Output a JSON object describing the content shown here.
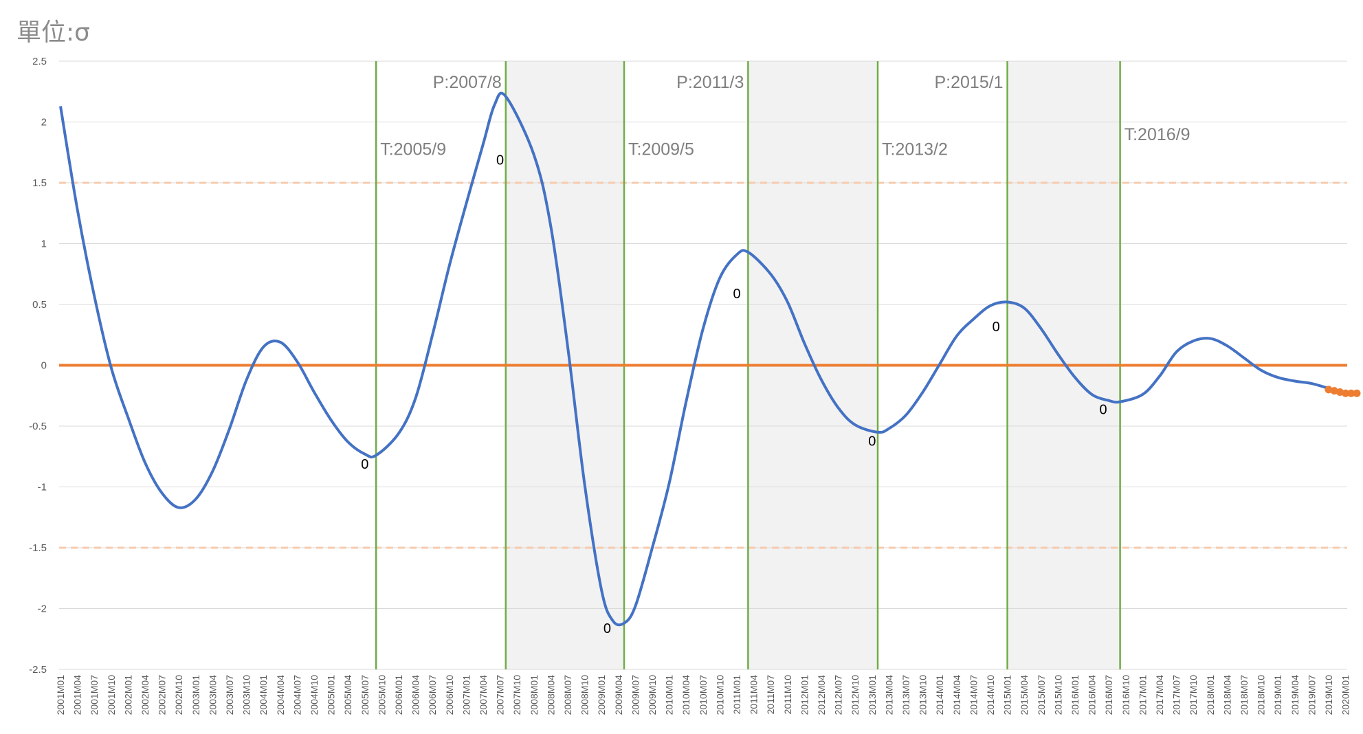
{
  "unit_label": "單位:σ",
  "colors": {
    "series": "#4472c4",
    "baseline": "#ed7d31",
    "forecast": "#ed7d31",
    "threshold": "#f8cbad",
    "turning_line": "#70ad47",
    "shade": "#f2f2f2",
    "grid": "#d9d9d9"
  },
  "chart_data": {
    "type": "line",
    "ylim": [
      -2.5,
      2.5
    ],
    "yticks": [
      "2.5",
      "2",
      "1.5",
      "1",
      "0.5",
      "0",
      "-0.5",
      "-1",
      "-1.5",
      "-2",
      "-2.5"
    ],
    "xticks": [
      "2001M01",
      "2001M04",
      "2001M07",
      "2001M10",
      "2002M01",
      "2002M04",
      "2002M07",
      "2002M10",
      "2003M01",
      "2003M04",
      "2003M07",
      "2003M10",
      "2004M01",
      "2004M04",
      "2004M07",
      "2004M10",
      "2005M01",
      "2005M04",
      "2005M07",
      "2005M10",
      "2006M01",
      "2006M04",
      "2006M07",
      "2006M10",
      "2007M01",
      "2007M04",
      "2007M07",
      "2007M10",
      "2008M01",
      "2008M04",
      "2008M07",
      "2008M10",
      "2009M01",
      "2009M04",
      "2009M07",
      "2009M10",
      "2010M01",
      "2010M04",
      "2010M07",
      "2010M10",
      "2011M01",
      "2011M04",
      "2011M07",
      "2011M10",
      "2012M01",
      "2012M04",
      "2012M07",
      "2012M10",
      "2013M01",
      "2013M04",
      "2013M07",
      "2013M10",
      "2014M01",
      "2014M04",
      "2014M07",
      "2014M10",
      "2015M01",
      "2015M04",
      "2015M07",
      "2015M10",
      "2016M01",
      "2016M04",
      "2016M07",
      "2016M10",
      "2017M01",
      "2017M04",
      "2017M07",
      "2017M10",
      "2018M01",
      "2018M04",
      "2018M07",
      "2018M10",
      "2019M01",
      "2019M04",
      "2019M07",
      "2019M10",
      "2020M01"
    ],
    "series": [
      {
        "role": "cycle",
        "points": [
          [
            "2001M01",
            2.13
          ],
          [
            "2001M04",
            1.28
          ],
          [
            "2001M07",
            0.57
          ],
          [
            "2001M10",
            -0.02
          ],
          [
            "2002M01",
            -0.43
          ],
          [
            "2002M04",
            -0.8
          ],
          [
            "2002M07",
            -1.05
          ],
          [
            "2002M10",
            -1.17
          ],
          [
            "2003M01",
            -1.1
          ],
          [
            "2003M04",
            -0.87
          ],
          [
            "2003M07",
            -0.52
          ],
          [
            "2003M10",
            -0.12
          ],
          [
            "2004M01",
            0.15
          ],
          [
            "2004M04",
            0.19
          ],
          [
            "2004M07",
            0.03
          ],
          [
            "2004M10",
            -0.22
          ],
          [
            "2005M01",
            -0.45
          ],
          [
            "2005M04",
            -0.63
          ],
          [
            "2005M07",
            -0.73
          ],
          [
            "2005M09",
            -0.74
          ],
          [
            "2006M01",
            -0.56
          ],
          [
            "2006M04",
            -0.27
          ],
          [
            "2006M07",
            0.25
          ],
          [
            "2006M10",
            0.82
          ],
          [
            "2007M01",
            1.33
          ],
          [
            "2007M04",
            1.82
          ],
          [
            "2007M06",
            2.14
          ],
          [
            "2007M08",
            2.21
          ],
          [
            "2008M01",
            1.73
          ],
          [
            "2008M04",
            1.14
          ],
          [
            "2008M07",
            0.15
          ],
          [
            "2008M10",
            -0.98
          ],
          [
            "2009M01",
            -1.85
          ],
          [
            "2009M03",
            -2.1
          ],
          [
            "2009M05",
            -2.12
          ],
          [
            "2009M07",
            -1.98
          ],
          [
            "2009M10",
            -1.5
          ],
          [
            "2010M01",
            -0.97
          ],
          [
            "2010M04",
            -0.3
          ],
          [
            "2010M07",
            0.3
          ],
          [
            "2010M10",
            0.72
          ],
          [
            "2011M01",
            0.91
          ],
          [
            "2011M03",
            0.93
          ],
          [
            "2011M07",
            0.75
          ],
          [
            "2011M10",
            0.52
          ],
          [
            "2012M01",
            0.18
          ],
          [
            "2012M04",
            -0.12
          ],
          [
            "2012M07",
            -0.35
          ],
          [
            "2012M10",
            -0.49
          ],
          [
            "2013M02",
            -0.55
          ],
          [
            "2013M04",
            -0.52
          ],
          [
            "2013M07",
            -0.41
          ],
          [
            "2013M10",
            -0.22
          ],
          [
            "2014M01",
            0.01
          ],
          [
            "2014M04",
            0.24
          ],
          [
            "2014M07",
            0.38
          ],
          [
            "2014M10",
            0.49
          ],
          [
            "2015M01",
            0.52
          ],
          [
            "2015M04",
            0.47
          ],
          [
            "2015M07",
            0.3
          ],
          [
            "2015M10",
            0.09
          ],
          [
            "2016M01",
            -0.1
          ],
          [
            "2016M04",
            -0.24
          ],
          [
            "2016M07",
            -0.29
          ],
          [
            "2016M09",
            -0.3
          ],
          [
            "2017M01",
            -0.24
          ],
          [
            "2017M04",
            -0.09
          ],
          [
            "2017M07",
            0.11
          ],
          [
            "2017M10",
            0.2
          ],
          [
            "2018M01",
            0.22
          ],
          [
            "2018M04",
            0.16
          ],
          [
            "2018M07",
            0.06
          ],
          [
            "2018M10",
            -0.04
          ],
          [
            "2019M01",
            -0.1
          ],
          [
            "2019M04",
            -0.13
          ],
          [
            "2019M07",
            -0.15
          ],
          [
            "2019M10",
            -0.19
          ]
        ]
      },
      {
        "role": "forecast",
        "points": [
          [
            "2019M10",
            -0.2
          ],
          [
            "2019M11",
            -0.21
          ],
          [
            "2019M12",
            -0.22
          ],
          [
            "2020M01",
            -0.23
          ],
          [
            "2020M02",
            -0.23
          ],
          [
            "2020M03",
            -0.23
          ]
        ]
      }
    ],
    "threshold_lines": [
      1.5,
      -1.5
    ],
    "shaded_ranges": [
      [
        "2007M08",
        "2009M05"
      ],
      [
        "2011M03",
        "2013M02"
      ],
      [
        "2015M01",
        "2016M09"
      ]
    ],
    "turning_points": [
      {
        "date": "2005M09",
        "label": "T:2005/9",
        "label_y": 1.73
      },
      {
        "date": "2007M08",
        "label": "P:2007/8",
        "label_y": 2.28
      },
      {
        "date": "2009M05",
        "label": "T:2009/5",
        "label_y": 1.73
      },
      {
        "date": "2011M03",
        "label": "P:2011/3",
        "label_y": 2.28
      },
      {
        "date": "2013M02",
        "label": "T:2013/2",
        "label_y": 1.73
      },
      {
        "date": "2015M01",
        "label": "P:2015/1",
        "label_y": 2.28
      },
      {
        "date": "2016M09",
        "label": "T:2016/9",
        "label_y": 1.85
      }
    ],
    "data_labels": [
      {
        "text": "0",
        "date": "2005M07",
        "y": -0.85
      },
      {
        "text": "0",
        "date": "2007M07",
        "y": 1.65
      },
      {
        "text": "0",
        "date": "2009M02",
        "y": -2.2
      },
      {
        "text": "0",
        "date": "2011M01",
        "y": 0.55
      },
      {
        "text": "0",
        "date": "2013M01",
        "y": -0.66
      },
      {
        "text": "0",
        "date": "2014M11",
        "y": 0.28
      },
      {
        "text": "0",
        "date": "2016M06",
        "y": -0.4
      }
    ]
  }
}
